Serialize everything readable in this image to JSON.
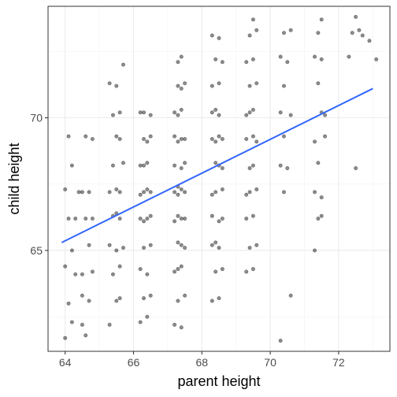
{
  "chart_data": {
    "type": "scatter",
    "xlabel": "parent height",
    "ylabel": "child height",
    "xlim": [
      63.5,
      73.5
    ],
    "ylim": [
      61.2,
      74.2
    ],
    "x_major_ticks": [
      64,
      66,
      68,
      70,
      72
    ],
    "x_minor_ticks": [
      65,
      67,
      69,
      71,
      73
    ],
    "y_major_ticks": [
      65,
      70
    ],
    "y_minor_ticks": [
      62.5,
      67.5,
      72.5
    ],
    "grid": true,
    "point_color": "#000000",
    "line_color": "#3366FF",
    "trend_line": {
      "method": "linear",
      "x": [
        63.9,
        73.0
      ],
      "y": [
        65.3,
        71.1
      ]
    },
    "points_summary": "jittered scatter of parent vs child heights; parent heights cluster near 64.5, 65.5, 66.5, 67.5, 68.5, 69.5, 70.5, 71.5, 72.5 and child heights near 61.7 through 73.7 in ~1 inch steps",
    "points": [
      [
        64.0,
        61.7
      ],
      [
        64.2,
        62.3
      ],
      [
        64.1,
        63.0
      ],
      [
        64.3,
        64.1
      ],
      [
        64.0,
        64.4
      ],
      [
        64.2,
        65.0
      ],
      [
        64.1,
        66.2
      ],
      [
        64.3,
        66.2
      ],
      [
        64.0,
        67.3
      ],
      [
        64.4,
        67.2
      ],
      [
        64.2,
        68.2
      ],
      [
        64.1,
        69.3
      ],
      [
        64.6,
        61.8
      ],
      [
        64.5,
        62.2
      ],
      [
        64.7,
        63.1
      ],
      [
        64.5,
        63.3
      ],
      [
        64.8,
        64.2
      ],
      [
        64.5,
        64.1
      ],
      [
        64.7,
        65.2
      ],
      [
        64.6,
        66.2
      ],
      [
        64.8,
        66.2
      ],
      [
        64.5,
        67.2
      ],
      [
        64.7,
        67.2
      ],
      [
        64.6,
        69.3
      ],
      [
        64.8,
        69.2
      ],
      [
        65.3,
        62.2
      ],
      [
        65.5,
        63.1
      ],
      [
        65.6,
        63.2
      ],
      [
        65.4,
        64.1
      ],
      [
        65.6,
        64.4
      ],
      [
        65.5,
        65.0
      ],
      [
        65.3,
        65.2
      ],
      [
        65.7,
        65.1
      ],
      [
        65.4,
        66.3
      ],
      [
        65.6,
        66.2
      ],
      [
        65.5,
        66.4
      ],
      [
        65.3,
        67.2
      ],
      [
        65.6,
        67.2
      ],
      [
        65.5,
        67.3
      ],
      [
        65.4,
        68.2
      ],
      [
        65.7,
        68.3
      ],
      [
        65.5,
        69.3
      ],
      [
        65.6,
        69.2
      ],
      [
        65.4,
        70.1
      ],
      [
        65.6,
        70.2
      ],
      [
        65.5,
        71.2
      ],
      [
        65.3,
        71.3
      ],
      [
        65.7,
        72.0
      ],
      [
        66.2,
        62.3
      ],
      [
        66.4,
        62.5
      ],
      [
        66.3,
        63.2
      ],
      [
        66.5,
        63.3
      ],
      [
        66.2,
        64.3
      ],
      [
        66.4,
        64.1
      ],
      [
        66.3,
        65.1
      ],
      [
        66.5,
        65.2
      ],
      [
        66.3,
        66.1
      ],
      [
        66.4,
        66.2
      ],
      [
        66.2,
        66.2
      ],
      [
        66.5,
        66.3
      ],
      [
        66.3,
        67.2
      ],
      [
        66.4,
        67.3
      ],
      [
        66.2,
        67.1
      ],
      [
        66.5,
        67.2
      ],
      [
        66.3,
        68.2
      ],
      [
        66.4,
        68.3
      ],
      [
        66.2,
        68.2
      ],
      [
        66.3,
        69.2
      ],
      [
        66.5,
        69.3
      ],
      [
        66.4,
        69.1
      ],
      [
        66.3,
        70.2
      ],
      [
        66.5,
        70.1
      ],
      [
        66.2,
        70.2
      ],
      [
        67.2,
        62.2
      ],
      [
        67.4,
        62.1
      ],
      [
        67.3,
        63.1
      ],
      [
        67.5,
        63.3
      ],
      [
        67.2,
        64.2
      ],
      [
        67.4,
        64.4
      ],
      [
        67.3,
        64.3
      ],
      [
        67.5,
        65.1
      ],
      [
        67.3,
        65.3
      ],
      [
        67.4,
        65.2
      ],
      [
        67.2,
        66.1
      ],
      [
        67.3,
        66.3
      ],
      [
        67.5,
        66.2
      ],
      [
        67.4,
        66.2
      ],
      [
        67.2,
        67.2
      ],
      [
        67.3,
        67.1
      ],
      [
        67.4,
        67.3
      ],
      [
        67.5,
        67.2
      ],
      [
        67.3,
        67.4
      ],
      [
        67.2,
        68.2
      ],
      [
        67.4,
        68.1
      ],
      [
        67.5,
        68.3
      ],
      [
        67.3,
        69.1
      ],
      [
        67.4,
        69.2
      ],
      [
        67.2,
        69.3
      ],
      [
        67.5,
        69.2
      ],
      [
        67.3,
        70.1
      ],
      [
        67.4,
        70.3
      ],
      [
        67.2,
        70.2
      ],
      [
        67.3,
        71.2
      ],
      [
        67.5,
        71.3
      ],
      [
        67.4,
        71.1
      ],
      [
        67.3,
        72.1
      ],
      [
        67.4,
        72.3
      ],
      [
        68.3,
        63.1
      ],
      [
        68.5,
        63.2
      ],
      [
        68.4,
        64.2
      ],
      [
        68.6,
        64.3
      ],
      [
        68.3,
        65.2
      ],
      [
        68.5,
        65.1
      ],
      [
        68.4,
        65.3
      ],
      [
        68.6,
        66.2
      ],
      [
        68.3,
        66.3
      ],
      [
        68.5,
        66.1
      ],
      [
        68.4,
        67.2
      ],
      [
        68.6,
        67.3
      ],
      [
        68.3,
        67.1
      ],
      [
        68.5,
        68.2
      ],
      [
        68.4,
        68.3
      ],
      [
        68.6,
        68.1
      ],
      [
        68.3,
        69.2
      ],
      [
        68.5,
        69.3
      ],
      [
        68.4,
        69.1
      ],
      [
        68.6,
        69.2
      ],
      [
        68.3,
        70.2
      ],
      [
        68.5,
        70.1
      ],
      [
        68.4,
        70.3
      ],
      [
        68.3,
        71.2
      ],
      [
        68.5,
        71.3
      ],
      [
        68.4,
        72.2
      ],
      [
        68.6,
        72.1
      ],
      [
        68.3,
        73.1
      ],
      [
        68.5,
        73.0
      ],
      [
        69.3,
        64.2
      ],
      [
        69.5,
        64.3
      ],
      [
        69.4,
        65.1
      ],
      [
        69.6,
        65.2
      ],
      [
        69.3,
        66.2
      ],
      [
        69.5,
        66.3
      ],
      [
        69.4,
        67.2
      ],
      [
        69.6,
        67.3
      ],
      [
        69.3,
        67.1
      ],
      [
        69.5,
        68.2
      ],
      [
        69.4,
        68.1
      ],
      [
        69.3,
        69.2
      ],
      [
        69.5,
        69.3
      ],
      [
        69.6,
        69.1
      ],
      [
        69.4,
        70.2
      ],
      [
        69.3,
        70.1
      ],
      [
        69.5,
        70.3
      ],
      [
        69.4,
        71.2
      ],
      [
        69.6,
        71.3
      ],
      [
        69.3,
        72.1
      ],
      [
        69.5,
        72.2
      ],
      [
        69.4,
        73.1
      ],
      [
        69.6,
        73.3
      ],
      [
        69.5,
        73.7
      ],
      [
        70.3,
        61.6
      ],
      [
        70.6,
        63.3
      ],
      [
        70.4,
        67.2
      ],
      [
        70.3,
        68.2
      ],
      [
        70.5,
        68.1
      ],
      [
        70.4,
        69.3
      ],
      [
        70.3,
        70.2
      ],
      [
        70.6,
        70.1
      ],
      [
        70.4,
        71.2
      ],
      [
        70.5,
        72.1
      ],
      [
        70.3,
        72.3
      ],
      [
        70.4,
        73.2
      ],
      [
        70.6,
        73.3
      ],
      [
        71.3,
        65.0
      ],
      [
        71.4,
        66.2
      ],
      [
        71.5,
        66.3
      ],
      [
        71.3,
        67.2
      ],
      [
        71.5,
        67.0
      ],
      [
        71.4,
        68.3
      ],
      [
        71.6,
        69.3
      ],
      [
        71.3,
        69.1
      ],
      [
        71.5,
        70.2
      ],
      [
        71.6,
        70.1
      ],
      [
        71.4,
        71.3
      ],
      [
        71.5,
        72.2
      ],
      [
        71.3,
        72.3
      ],
      [
        71.4,
        73.2
      ],
      [
        71.5,
        73.7
      ],
      [
        72.3,
        72.3
      ],
      [
        72.4,
        73.2
      ],
      [
        72.5,
        73.8
      ],
      [
        72.6,
        73.3
      ],
      [
        72.5,
        68.1
      ],
      [
        72.7,
        73.1
      ],
      [
        72.9,
        72.9
      ],
      [
        73.1,
        72.2
      ]
    ]
  }
}
